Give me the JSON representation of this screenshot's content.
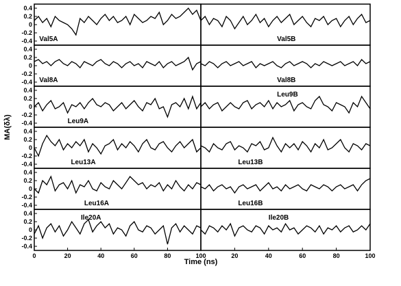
{
  "ylabel": "MA(δλ)",
  "xlabel": "Time (ns)",
  "x": [
    0,
    2.5,
    5,
    7.5,
    10,
    12.5,
    15,
    17.5,
    20,
    22.5,
    25,
    27.5,
    30,
    32.5,
    35,
    37.5,
    40,
    42.5,
    45,
    47.5,
    50,
    52.5,
    55,
    57.5,
    60,
    62.5,
    65,
    67.5,
    70,
    72.5,
    75,
    77.5,
    80,
    82.5,
    85,
    87.5,
    90,
    92.5,
    95,
    97.5,
    100
  ],
  "chart_data": [
    {
      "type": "line",
      "label": "Val5A",
      "ylim": [
        -0.5,
        0.5
      ],
      "xlim": [
        0,
        100
      ],
      "yticks": [
        -0.4,
        -0.2,
        0,
        0.2,
        0.4
      ],
      "values": [
        0.1,
        0.2,
        0.05,
        0.15,
        -0.05,
        0.2,
        0.1,
        0.05,
        0.0,
        -0.1,
        -0.25,
        0.15,
        0.05,
        0.2,
        0.1,
        0.0,
        0.15,
        0.25,
        0.1,
        0.2,
        0.05,
        0.1,
        0.2,
        0.0,
        0.25,
        0.15,
        0.05,
        0.1,
        0.2,
        0.15,
        0.3,
        0.0,
        0.1,
        0.25,
        0.15,
        0.2,
        0.3,
        0.4,
        0.25,
        0.35,
        0.1
      ]
    },
    {
      "type": "line",
      "label": "Val5B",
      "ylim": [
        -0.5,
        0.5
      ],
      "xlim": [
        0,
        100
      ],
      "values": [
        0.1,
        0.2,
        0.0,
        0.15,
        0.1,
        -0.05,
        0.2,
        0.1,
        -0.1,
        0.05,
        0.2,
        0.0,
        0.1,
        0.25,
        0.05,
        0.15,
        -0.05,
        0.1,
        0.2,
        0.05,
        0.15,
        0.25,
        0.0,
        0.1,
        0.2,
        0.05,
        -0.05,
        0.15,
        0.1,
        0.2,
        0.0,
        0.1,
        0.15,
        -0.05,
        0.1,
        0.2,
        0.0,
        0.15,
        0.25,
        0.05,
        0.1
      ]
    },
    {
      "type": "line",
      "label": "Val8A",
      "ylim": [
        -0.5,
        0.5
      ],
      "xlim": [
        0,
        100
      ],
      "yticks": [
        -0.4,
        -0.2,
        0,
        0.2,
        0.4
      ],
      "values": [
        0.1,
        0.15,
        0.05,
        0.1,
        0.0,
        0.1,
        0.15,
        0.05,
        0.0,
        0.1,
        0.05,
        -0.05,
        0.1,
        0.05,
        0.0,
        0.1,
        0.15,
        0.05,
        0.0,
        0.1,
        0.05,
        -0.05,
        0.05,
        0.1,
        0.0,
        0.05,
        -0.05,
        0.1,
        0.05,
        0.0,
        0.1,
        -0.05,
        0.05,
        0.1,
        0.0,
        0.05,
        0.1,
        0.2,
        -0.1,
        0.05,
        0.1
      ]
    },
    {
      "type": "line",
      "label": "Val8B",
      "ylim": [
        -0.5,
        0.5
      ],
      "xlim": [
        0,
        100
      ],
      "values": [
        0.05,
        0.0,
        0.1,
        0.05,
        -0.05,
        0.05,
        0.1,
        0.0,
        0.05,
        0.1,
        0.0,
        0.05,
        0.1,
        -0.05,
        0.05,
        0.0,
        0.05,
        0.1,
        0.0,
        -0.05,
        0.05,
        0.1,
        0.0,
        0.05,
        0.1,
        0.05,
        -0.05,
        0.05,
        0.0,
        0.1,
        0.05,
        0.0,
        0.05,
        0.1,
        0.0,
        0.05,
        0.1,
        0.0,
        0.15,
        0.05,
        0.1
      ]
    },
    {
      "type": "line",
      "label": "Leu9A",
      "ylim": [
        -0.5,
        0.5
      ],
      "xlim": [
        0,
        100
      ],
      "yticks": [
        -0.4,
        -0.2,
        0,
        0.2,
        0.4
      ],
      "values": [
        0.0,
        0.1,
        -0.1,
        0.05,
        0.15,
        -0.05,
        0.0,
        0.1,
        -0.15,
        0.05,
        0.0,
        0.1,
        -0.05,
        0.1,
        0.2,
        0.05,
        0.0,
        0.1,
        0.05,
        -0.1,
        0.0,
        0.1,
        -0.05,
        0.05,
        0.15,
        0.0,
        -0.1,
        0.1,
        0.05,
        0.2,
        -0.05,
        0.0,
        -0.25,
        0.05,
        0.1,
        0.0,
        0.2,
        -0.05,
        0.25,
        -0.05,
        0.1
      ]
    },
    {
      "type": "line",
      "label": "Leu9B",
      "ylim": [
        -0.5,
        0.5
      ],
      "xlim": [
        0,
        100
      ],
      "values": [
        0.0,
        0.1,
        -0.05,
        0.05,
        0.1,
        -0.1,
        0.0,
        0.1,
        0.0,
        -0.05,
        0.1,
        0.15,
        -0.05,
        0.05,
        0.1,
        0.0,
        0.15,
        -0.05,
        0.1,
        0.0,
        0.05,
        0.15,
        -0.1,
        0.05,
        0.1,
        0.0,
        -0.05,
        0.15,
        0.25,
        0.05,
        0.0,
        -0.1,
        0.1,
        0.05,
        0.0,
        -0.15,
        0.1,
        0.0,
        0.25,
        0.1,
        -0.05
      ]
    },
    {
      "type": "line",
      "label": "Leu13A",
      "ylim": [
        -0.5,
        0.5
      ],
      "xlim": [
        0,
        100
      ],
      "yticks": [
        -0.4,
        -0.2,
        0,
        0.2,
        0.4
      ],
      "values": [
        0.0,
        -0.2,
        0.1,
        0.3,
        0.15,
        0.05,
        0.2,
        -0.05,
        0.1,
        0.0,
        0.15,
        0.05,
        0.2,
        -0.1,
        0.1,
        0.0,
        -0.15,
        0.05,
        0.1,
        0.2,
        -0.05,
        0.1,
        0.0,
        0.15,
        0.05,
        -0.1,
        0.1,
        0.2,
        0.0,
        -0.05,
        0.1,
        0.15,
        0.0,
        -0.1,
        0.05,
        0.15,
        0.0,
        0.1,
        0.2,
        -0.1,
        0.0
      ]
    },
    {
      "type": "line",
      "label": "Leu13B",
      "ylim": [
        -0.5,
        0.5
      ],
      "xlim": [
        0,
        100
      ],
      "values": [
        0.05,
        0.0,
        -0.1,
        0.1,
        0.0,
        -0.05,
        0.1,
        0.15,
        -0.05,
        0.05,
        0.0,
        -0.1,
        0.1,
        0.05,
        0.15,
        -0.05,
        0.0,
        0.25,
        0.05,
        -0.1,
        0.1,
        0.0,
        0.1,
        -0.05,
        0.15,
        0.05,
        -0.1,
        0.1,
        0.0,
        0.2,
        -0.05,
        0.0,
        0.1,
        0.2,
        0.0,
        -0.1,
        0.1,
        0.05,
        -0.05,
        0.1,
        0.05
      ]
    },
    {
      "type": "line",
      "label": "Leu16A",
      "ylim": [
        -0.5,
        0.5
      ],
      "xlim": [
        0,
        100
      ],
      "yticks": [
        -0.4,
        -0.2,
        0,
        0.2,
        0.4
      ],
      "values": [
        0.0,
        -0.1,
        0.2,
        0.1,
        0.3,
        -0.05,
        0.1,
        0.15,
        0.0,
        0.2,
        -0.1,
        0.1,
        0.05,
        0.2,
        0.0,
        -0.05,
        0.15,
        0.05,
        0.0,
        0.2,
        0.1,
        0.0,
        0.15,
        0.3,
        0.2,
        0.1,
        0.15,
        0.0,
        0.1,
        0.05,
        0.15,
        -0.05,
        0.1,
        0.0,
        0.2,
        0.05,
        -0.05,
        0.1,
        0.0,
        0.15,
        0.1
      ]
    },
    {
      "type": "line",
      "label": "Leu16B",
      "ylim": [
        -0.5,
        0.5
      ],
      "xlim": [
        0,
        100
      ],
      "values": [
        0.05,
        0.0,
        0.1,
        -0.05,
        0.05,
        0.1,
        0.0,
        0.05,
        -0.1,
        0.05,
        0.1,
        0.0,
        0.05,
        0.1,
        -0.05,
        0.05,
        0.15,
        0.0,
        0.05,
        -0.05,
        0.1,
        0.0,
        0.05,
        0.1,
        0.0,
        -0.05,
        0.1,
        0.05,
        0.0,
        0.1,
        0.05,
        -0.05,
        0.05,
        0.1,
        0.0,
        0.05,
        0.1,
        -0.05,
        0.1,
        0.2,
        0.25
      ]
    },
    {
      "type": "line",
      "label": "Ile20A",
      "ylim": [
        -0.5,
        0.5
      ],
      "xlim": [
        0,
        100
      ],
      "yticks": [
        -0.4,
        -0.2,
        0,
        0.2,
        0.4
      ],
      "xticks": [
        0,
        20,
        40,
        60,
        80,
        100
      ],
      "values": [
        -0.1,
        0.1,
        -0.2,
        0.05,
        0.15,
        -0.05,
        0.1,
        -0.15,
        0.0,
        0.2,
        0.05,
        -0.1,
        0.15,
        0.25,
        -0.05,
        0.1,
        0.2,
        0.05,
        0.15,
        -0.1,
        0.05,
        0.0,
        -0.15,
        0.1,
        0.2,
        0.0,
        -0.05,
        0.1,
        0.05,
        -0.1,
        0.0,
        0.1,
        -0.35,
        0.05,
        0.15,
        -0.05,
        0.1,
        0.0,
        -0.1,
        0.1,
        0.05
      ]
    },
    {
      "type": "line",
      "label": "Ile20B",
      "ylim": [
        -0.5,
        0.5
      ],
      "xlim": [
        0,
        100
      ],
      "xticks": [
        20,
        40,
        60,
        80,
        100
      ],
      "values": [
        0.0,
        -0.1,
        0.1,
        0.05,
        -0.05,
        0.1,
        0.0,
        0.15,
        -0.15,
        0.05,
        0.1,
        0.0,
        -0.05,
        0.1,
        0.05,
        -0.1,
        0.1,
        0.0,
        0.05,
        -0.05,
        0.15,
        0.0,
        0.05,
        -0.1,
        0.0,
        0.1,
        0.05,
        -0.05,
        0.1,
        -0.1,
        0.05,
        0.0,
        0.1,
        -0.05,
        0.05,
        0.1,
        -0.05,
        0.0,
        0.1,
        0.0,
        0.15
      ]
    }
  ]
}
